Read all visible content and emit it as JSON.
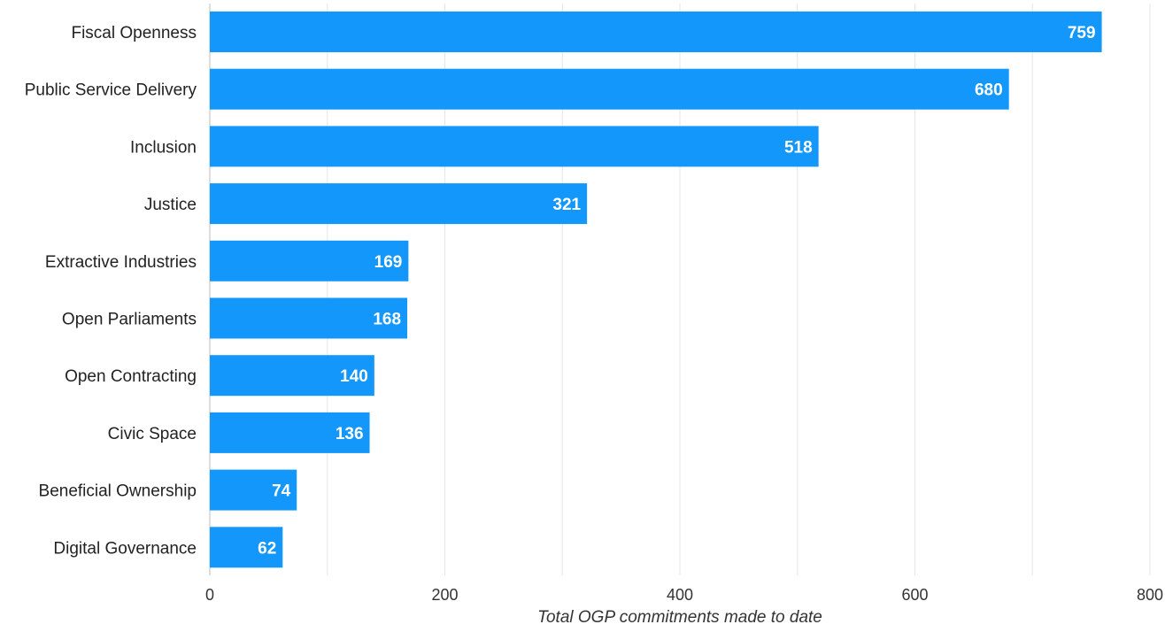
{
  "chart_data": {
    "type": "bar",
    "orientation": "horizontal",
    "categories": [
      "Fiscal Openness",
      "Public Service Delivery",
      "Inclusion",
      "Justice",
      "Extractive Industries",
      "Open Parliaments",
      "Open Contracting",
      "Civic Space",
      "Beneficial Ownership",
      "Digital Governance"
    ],
    "values": [
      759,
      680,
      518,
      321,
      169,
      168,
      140,
      136,
      74,
      62
    ],
    "title": "",
    "xlabel": "Total OGP commitments made to date",
    "ylabel": "",
    "xlim": [
      0,
      800
    ],
    "x_ticks": [
      0,
      200,
      400,
      600,
      800
    ],
    "x_tick_labels": [
      "0",
      "200",
      "400",
      "600",
      "800"
    ],
    "minor_gridlines": [
      100,
      300,
      500,
      700
    ],
    "grid": true,
    "legend": "none",
    "bar_color": "#1497fb",
    "data_labels": true
  }
}
